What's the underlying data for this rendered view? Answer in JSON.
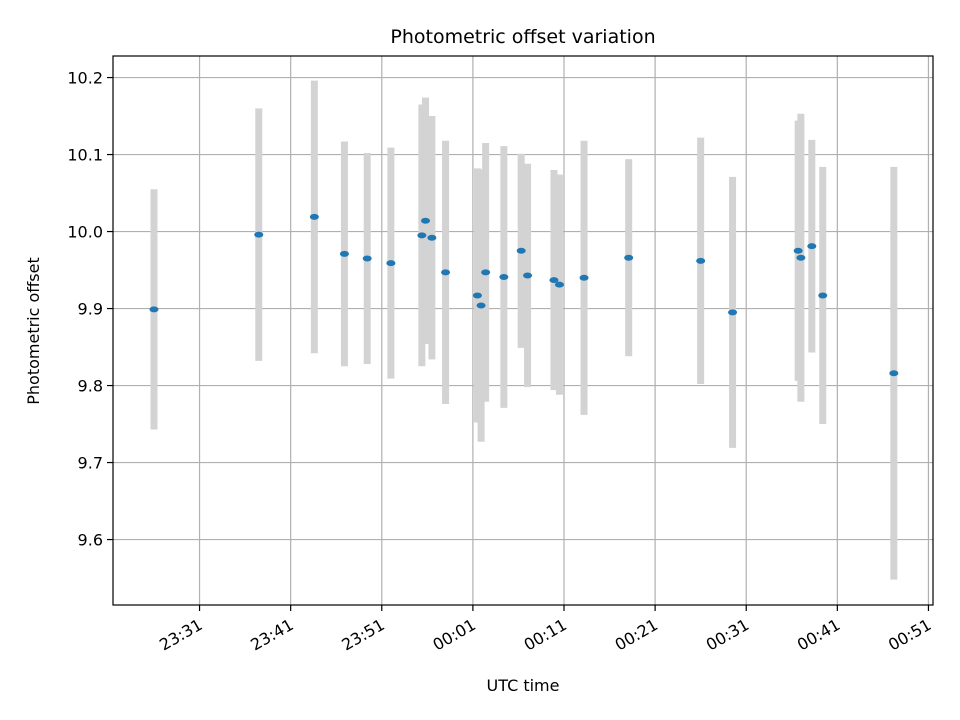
{
  "chart_data": {
    "type": "scatter",
    "title": "Photometric offset variation",
    "xlabel": "UTC time",
    "ylabel": "Photometric offset",
    "grid": true,
    "x_tick_labels": [
      "23:31",
      "23:41",
      "23:51",
      "00:01",
      "00:11",
      "00:21",
      "00:31",
      "00:41",
      "00:51"
    ],
    "y_ticks": [
      9.6,
      9.7,
      9.8,
      9.9,
      10.0,
      10.1,
      10.2
    ],
    "y_tick_labels": [
      "9.6",
      "9.7",
      "9.8",
      "9.9",
      "10.0",
      "10.1",
      "10.2"
    ],
    "ylim": [
      9.515,
      10.228
    ],
    "xlim": [
      "23:21:30",
      "00:51:30"
    ],
    "colors": {
      "points": "#1f77b4",
      "errorbars": "#d3d3d3",
      "grid": "#b0b0b0"
    },
    "series": [
      {
        "points": [
          {
            "x": "23:26:00",
            "y": 9.899,
            "yerr": 0.156
          },
          {
            "x": "23:37:30",
            "y": 9.996,
            "yerr": 0.164
          },
          {
            "x": "23:43:36",
            "y": 10.019,
            "yerr": 0.177
          },
          {
            "x": "23:46:54",
            "y": 9.971,
            "yerr": 0.146
          },
          {
            "x": "23:49:24",
            "y": 9.965,
            "yerr": 0.137
          },
          {
            "x": "23:52:00",
            "y": 9.959,
            "yerr": 0.15
          },
          {
            "x": "23:55:24",
            "y": 9.995,
            "yerr": 0.17
          },
          {
            "x": "23:55:48",
            "y": 10.014,
            "yerr": 0.16
          },
          {
            "x": "23:56:30",
            "y": 9.992,
            "yerr": 0.158
          },
          {
            "x": "23:58:00",
            "y": 9.947,
            "yerr": 0.171
          },
          {
            "x": "00:01:30",
            "y": 9.917,
            "yerr": 0.165
          },
          {
            "x": "00:01:54",
            "y": 9.904,
            "yerr": 0.177
          },
          {
            "x": "00:02:24",
            "y": 9.947,
            "yerr": 0.168
          },
          {
            "x": "00:04:24",
            "y": 9.941,
            "yerr": 0.17
          },
          {
            "x": "00:06:18",
            "y": 9.975,
            "yerr": 0.126
          },
          {
            "x": "00:07:00",
            "y": 9.943,
            "yerr": 0.145
          },
          {
            "x": "00:09:54",
            "y": 9.937,
            "yerr": 0.143
          },
          {
            "x": "00:10:30",
            "y": 9.931,
            "yerr": 0.143
          },
          {
            "x": "00:13:12",
            "y": 9.94,
            "yerr": 0.178
          },
          {
            "x": "00:18:06",
            "y": 9.966,
            "yerr": 0.128
          },
          {
            "x": "00:26:00",
            "y": 9.962,
            "yerr": 0.16
          },
          {
            "x": "00:29:30",
            "y": 9.895,
            "yerr": 0.176
          },
          {
            "x": "00:36:42",
            "y": 9.975,
            "yerr": 0.169
          },
          {
            "x": "00:37:00",
            "y": 9.966,
            "yerr": 0.187
          },
          {
            "x": "00:38:12",
            "y": 9.981,
            "yerr": 0.138
          },
          {
            "x": "00:39:24",
            "y": 9.917,
            "yerr": 0.167
          },
          {
            "x": "00:47:12",
            "y": 9.816,
            "yerr": 0.268
          }
        ]
      }
    ]
  }
}
